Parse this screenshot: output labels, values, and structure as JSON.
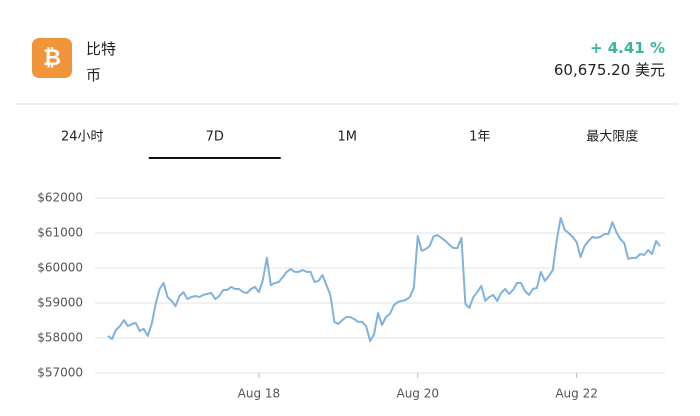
{
  "header": {
    "name": "比特币",
    "change": "+ 4.41 %",
    "price": "60,675.20 美元"
  },
  "tabs": {
    "items": [
      "24小时",
      "7D",
      "1M",
      "1年",
      "最大限度"
    ],
    "selected": 1
  },
  "chart_data": {
    "type": "line",
    "categories": [
      null,
      null,
      null,
      null,
      null,
      null,
      null,
      null,
      null,
      null,
      null,
      null,
      null,
      null,
      null,
      null,
      null,
      null,
      null,
      null,
      null,
      null,
      null,
      null,
      null,
      null,
      null,
      null,
      null,
      null,
      null,
      null,
      null,
      null,
      null,
      null,
      null,
      null,
      "Aug 18",
      null,
      null,
      null,
      null,
      null,
      null,
      null,
      null,
      null,
      null,
      null,
      null,
      null,
      null,
      null,
      null,
      null,
      null,
      null,
      null,
      null,
      null,
      null,
      null,
      null,
      null,
      null,
      null,
      null,
      null,
      null,
      null,
      null,
      null,
      null,
      null,
      null,
      null,
      null,
      "Aug 20",
      null,
      null,
      null,
      null,
      null,
      null,
      null,
      null,
      null,
      null,
      null,
      null,
      null,
      null,
      null,
      null,
      null,
      null,
      null,
      null,
      null,
      null,
      null,
      null,
      null,
      null,
      null,
      null,
      null,
      null,
      null,
      null,
      null,
      null,
      null,
      null,
      null,
      null,
      null,
      "Aug 22",
      null,
      null,
      null,
      null,
      null,
      null,
      null,
      null,
      null,
      null,
      null,
      null,
      null,
      null,
      null,
      null,
      null,
      null,
      null,
      null,
      null
    ],
    "series": [
      {
        "color": "#7fb3de",
        "values": [
          58060,
          57970,
          58230,
          58340,
          58510,
          58340,
          58400,
          58430,
          58200,
          58260,
          58060,
          58400,
          58970,
          59400,
          59570,
          59170,
          59060,
          58910,
          59200,
          59310,
          59110,
          59170,
          59200,
          59170,
          59230,
          59260,
          59290,
          59110,
          59200,
          59370,
          59370,
          59460,
          59400,
          59400,
          59310,
          59290,
          59400,
          59460,
          59310,
          59660,
          60290,
          59510,
          59570,
          59600,
          59740,
          59890,
          59970,
          59890,
          59890,
          59940,
          59890,
          59890,
          59600,
          59630,
          59800,
          59510,
          59230,
          58460,
          58400,
          58510,
          58600,
          58600,
          58540,
          58460,
          58460,
          58340,
          57910,
          58110,
          58710,
          58370,
          58600,
          58690,
          58940,
          59030,
          59060,
          59090,
          59170,
          59430,
          60910,
          60490,
          60540,
          60630,
          60910,
          60940,
          60860,
          60770,
          60660,
          60570,
          60570,
          60860,
          58970,
          58860,
          59170,
          59310,
          59490,
          59060,
          59170,
          59230,
          59060,
          59290,
          59400,
          59260,
          59370,
          59570,
          59570,
          59340,
          59230,
          59400,
          59430,
          59890,
          59630,
          59770,
          59940,
          60800,
          61430,
          61090,
          61000,
          60890,
          60740,
          60310,
          60630,
          60770,
          60890,
          60860,
          60890,
          60970,
          60970,
          61310,
          61030,
          60830,
          60710,
          60260,
          60290,
          60290,
          60400,
          60370,
          60510,
          60400,
          60770,
          60630
        ]
      }
    ],
    "ylim": [
      57000,
      62000
    ],
    "yticks": [
      {
        "value": 57000,
        "label": "$57000"
      },
      {
        "value": 58000,
        "label": "$58000"
      },
      {
        "value": 59000,
        "label": "$59000"
      },
      {
        "value": 60000,
        "label": "$60000"
      },
      {
        "value": 61000,
        "label": "$61000"
      },
      {
        "value": 62000,
        "label": "$62000"
      }
    ],
    "grid": true
  }
}
